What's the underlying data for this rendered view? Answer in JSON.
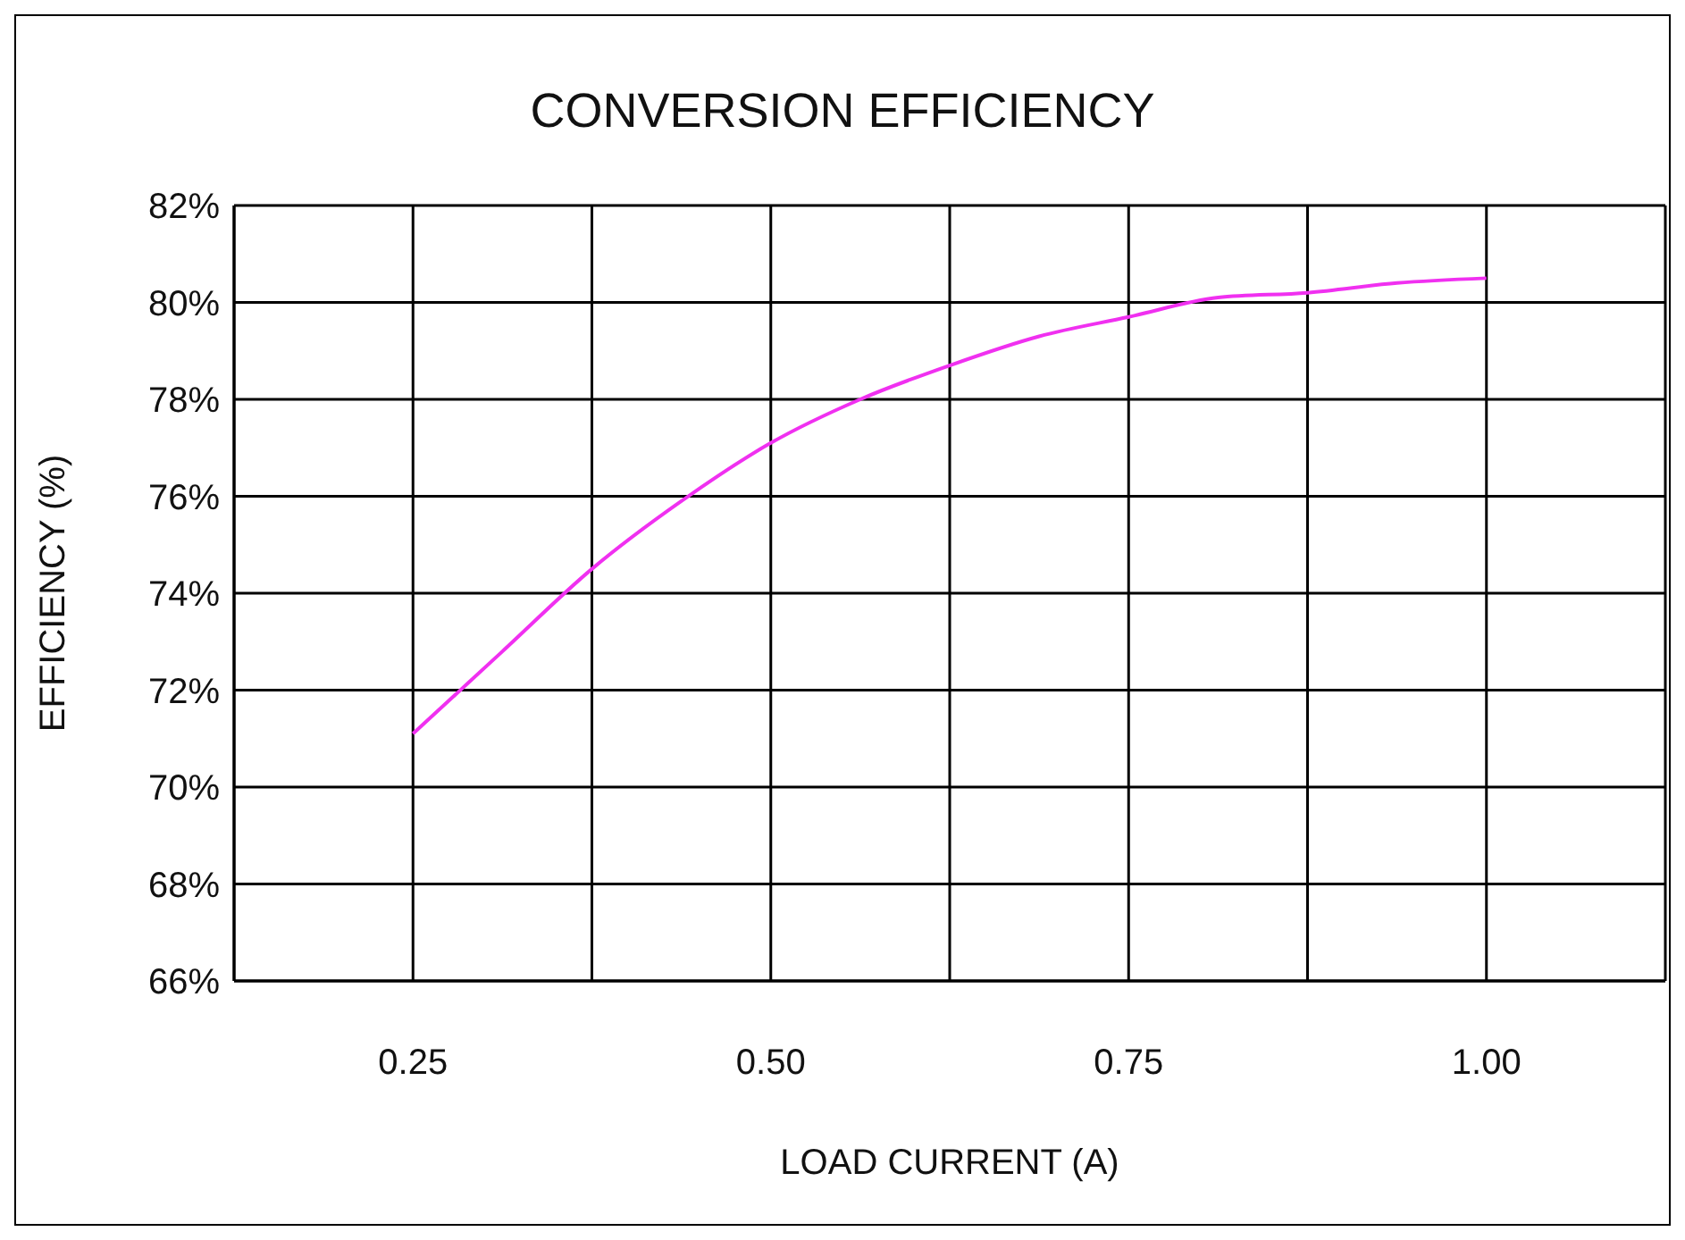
{
  "chart_data": {
    "type": "line",
    "title": "CONVERSION EFFICIENCY",
    "xlabel": "LOAD CURRENT (A)",
    "ylabel": "EFFICIENCY (%)",
    "x": [
      0.25,
      0.3125,
      0.375,
      0.4375,
      0.5,
      0.5625,
      0.625,
      0.6875,
      0.75,
      0.8125,
      0.875,
      0.9375,
      1.0
    ],
    "series": [
      {
        "color": "#f030f0",
        "values": [
          71.1,
          72.8,
          74.5,
          75.9,
          77.1,
          78.0,
          78.7,
          79.3,
          79.7,
          80.1,
          80.2,
          80.4,
          80.5
        ]
      }
    ],
    "xlim": [
      0.125,
      1.125
    ],
    "xticks": [
      {
        "value": 0.125,
        "label": null
      },
      "0.25",
      {
        "value": 0.375,
        "label": null
      },
      {
        "value": 0.5,
        "label": "0.50"
      },
      {
        "value": 0.625,
        "label": null
      },
      {
        "value": 0.75,
        "label": "0.75"
      },
      {
        "value": 0.875,
        "label": null
      },
      {
        "value": 1.0,
        "label": "1.00"
      },
      {
        "value": 1.125,
        "label": null
      }
    ],
    "ylim": [
      66,
      82
    ],
    "yticks": [
      {
        "value": 66,
        "label": "66%"
      },
      {
        "value": 68,
        "label": "68%"
      },
      {
        "value": 70,
        "label": "70%"
      },
      {
        "value": 72,
        "label": "72%"
      },
      {
        "value": 74,
        "label": "74%"
      },
      {
        "value": 76,
        "label": "76%"
      },
      {
        "value": 78,
        "label": "78%"
      },
      {
        "value": 80,
        "label": "80%"
      },
      {
        "value": 82,
        "label": "82%"
      }
    ],
    "grid": true,
    "marker": "none",
    "line_style": "solid"
  }
}
